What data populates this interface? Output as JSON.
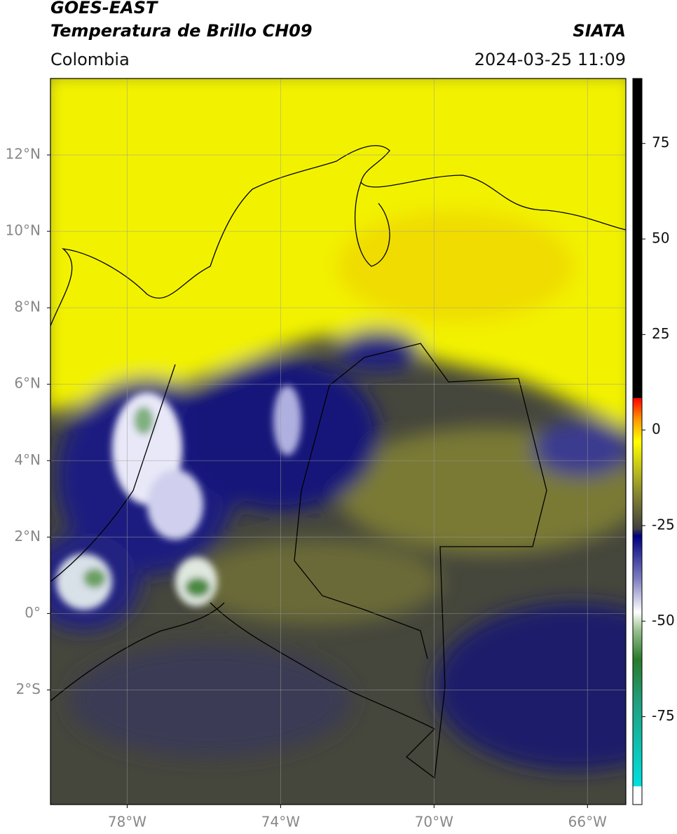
{
  "header": {
    "title_line1": "GOES-EAST",
    "title_line2": "Temperatura de Brillo CH09",
    "source": "SIATA",
    "region": "Colombia",
    "datetime": "2024-03-25 11:09"
  },
  "map": {
    "xlim": [
      -80,
      -65
    ],
    "ylim": [
      -5,
      14
    ],
    "xticks": [
      {
        "value": -78,
        "label": "78°W"
      },
      {
        "value": -74,
        "label": "74°W"
      },
      {
        "value": -70,
        "label": "70°W"
      },
      {
        "value": -66,
        "label": "66°W"
      }
    ],
    "yticks": [
      {
        "value": 12,
        "label": "12°N"
      },
      {
        "value": 10,
        "label": "10°N"
      },
      {
        "value": 8,
        "label": "8°N"
      },
      {
        "value": 6,
        "label": "6°N"
      },
      {
        "value": 4,
        "label": "4°N"
      },
      {
        "value": 2,
        "label": "2°N"
      },
      {
        "value": 0,
        "label": "0°"
      },
      {
        "value": -2,
        "label": "2°S"
      }
    ],
    "grid": true
  },
  "colorbar": {
    "lim": [
      -98,
      92
    ],
    "ticks": [
      75,
      50,
      25,
      0,
      -25,
      -50,
      -75
    ]
  }
}
